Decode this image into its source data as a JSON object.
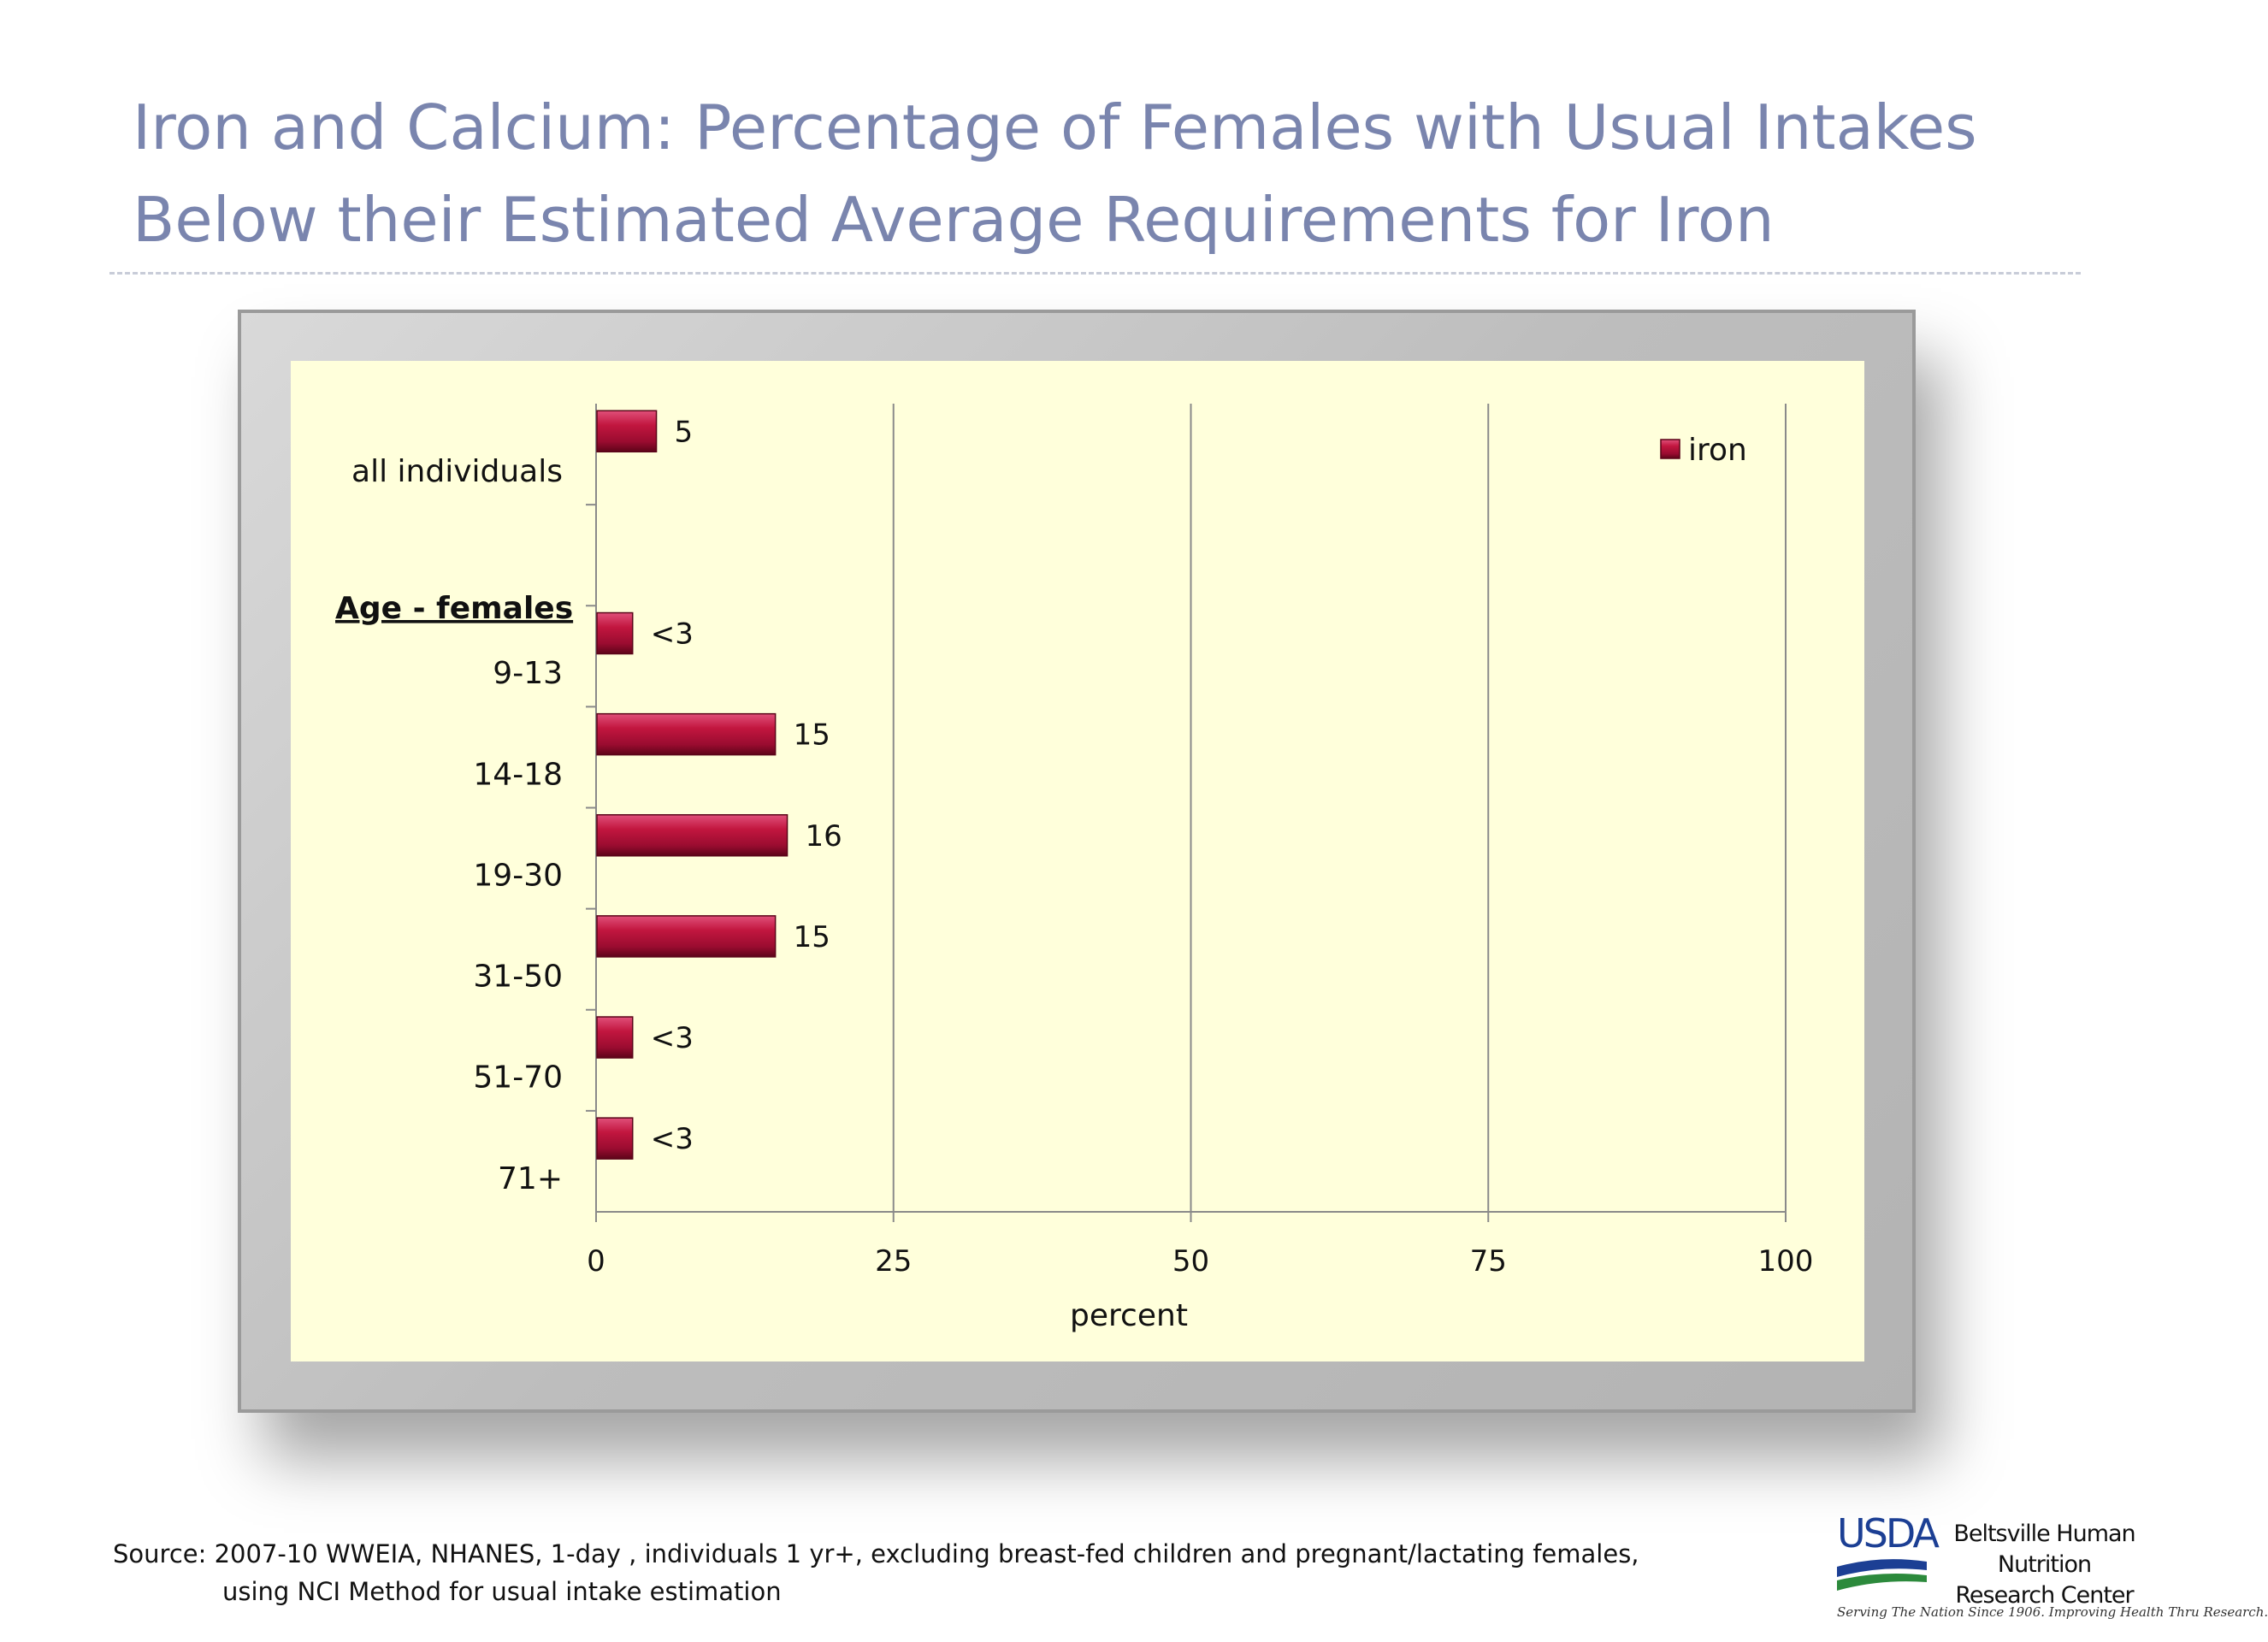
{
  "title": {
    "line1": "Iron and Calcium:  Percentage of Females with Usual Intakes",
    "line2": "Below their Estimated Average Requirements for Iron"
  },
  "chart_data": {
    "type": "bar",
    "orientation": "horizontal",
    "categories": [
      "all individuals",
      "9-13",
      "14-18",
      "19-30",
      "31-50",
      "51-70",
      "71+"
    ],
    "group_label": "Age - females",
    "series": [
      {
        "name": "iron",
        "values": [
          5,
          3,
          15,
          16,
          15,
          3,
          3
        ],
        "labels": [
          "5",
          "<3",
          "15",
          "16",
          "15",
          "<3",
          "<3"
        ],
        "color": "#b5123e"
      }
    ],
    "xlabel": "percent",
    "xlim": [
      0,
      100
    ],
    "xticks": [
      "0",
      "25",
      "50",
      "75",
      "100"
    ],
    "grid": true,
    "legend_position": "top-right",
    "plot_background": "#ffffdb"
  },
  "source": {
    "line1": "Source:  2007-10 WWEIA, NHANES, 1-day , individuals 1 yr+, excluding breast-fed children and pregnant/lactating females,",
    "line2": "using NCI Method for usual intake estimation"
  },
  "logo": {
    "agency": "USDA",
    "center_line1": "Beltsville Human Nutrition",
    "center_line2": "Research Center",
    "tagline": "Serving The Nation Since 1906. Improving Health Thru Research."
  }
}
